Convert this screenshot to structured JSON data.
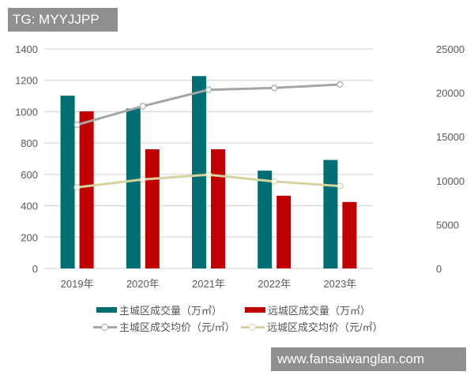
{
  "watermark_tag": "TG: MYYJJPP",
  "watermark_site": "www.fansaiwanglan.com",
  "chart_data": {
    "type": "bar+line",
    "categories": [
      "2019年",
      "2020年",
      "2021年",
      "2022年",
      "2023年"
    ],
    "left_axis": {
      "ylim": [
        0,
        1400
      ],
      "ticks": [
        "0",
        "200",
        "400",
        "600",
        "800",
        "1000",
        "1200",
        "1400"
      ]
    },
    "right_axis": {
      "ylim": [
        0,
        25000
      ],
      "ticks": [
        "0",
        "5000",
        "10000",
        "15000",
        "20000",
        "25000"
      ]
    },
    "grid": true,
    "legend_position": "bottom",
    "series": [
      {
        "name": "主城区成交量（万㎡）",
        "type": "bar",
        "axis": "left",
        "color": "#006E73",
        "values": [
          1102,
          1020,
          1227,
          624,
          692
        ]
      },
      {
        "name": "远城区成交量（万㎡）",
        "type": "bar",
        "axis": "left",
        "color": "#C00000",
        "values": [
          1002,
          760,
          760,
          464,
          424
        ]
      },
      {
        "name": "主城区成交均价（元/㎡）",
        "type": "line",
        "axis": "right",
        "color": "#A5A5A5",
        "values": [
          16360,
          18490,
          20350,
          20560,
          20950
        ]
      },
      {
        "name": "远城区成交均价（元/㎡）",
        "type": "line",
        "axis": "right",
        "color": "#D6D3A0",
        "values": [
          9240,
          10140,
          10680,
          9900,
          9390
        ]
      }
    ]
  }
}
